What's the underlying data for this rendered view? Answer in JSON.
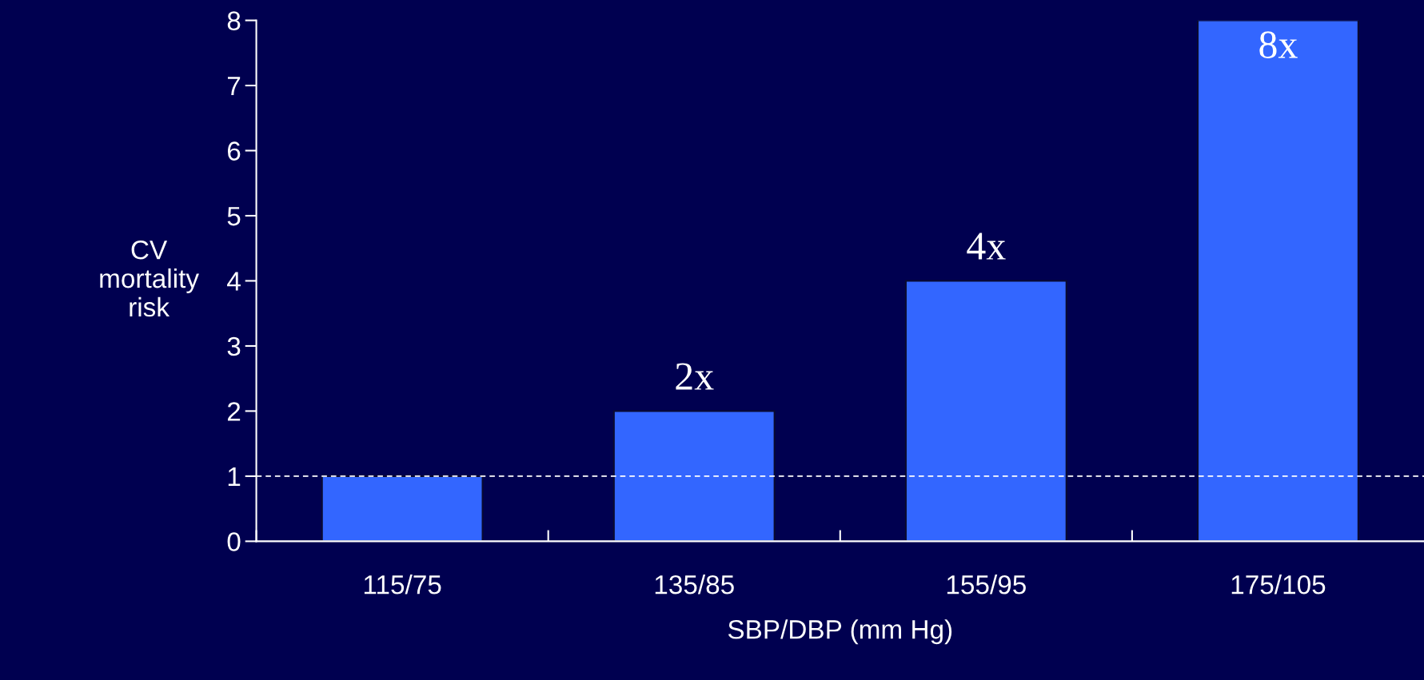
{
  "chart_data": {
    "type": "bar",
    "xlabel": "SBP/DBP (mm Hg)",
    "ylabel": "CV\nmortality\nrisk",
    "categories": [
      "115/75",
      "135/85",
      "155/95",
      "175/105"
    ],
    "values": [
      1,
      2,
      4,
      8
    ],
    "value_labels": [
      null,
      "2x",
      "4x",
      "8x"
    ],
    "color": "#3366ff",
    "ylim": [
      0,
      8
    ],
    "yticks": [
      0,
      1,
      2,
      3,
      4,
      5,
      6,
      7,
      8
    ],
    "ref_lines": [
      {
        "axis": "y",
        "value": 1,
        "color": "#ffffff",
        "line_style": "dashed"
      }
    ],
    "grid": false,
    "legend": false
  }
}
